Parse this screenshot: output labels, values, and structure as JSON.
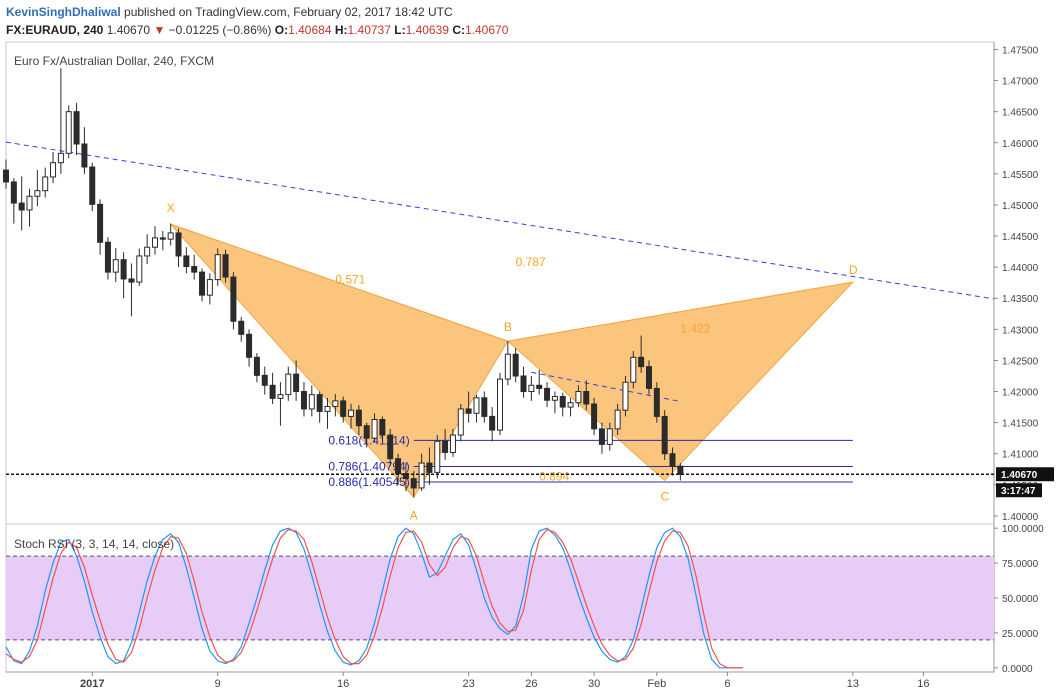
{
  "header": {
    "author": "KevinSinghDhaliwal",
    "published_text": "published on TradingView.com, February 02, 2017 18:42 UTC",
    "symbol": "FX:EURAUD, 240",
    "last": "1.40670",
    "change_arrow": "▼",
    "change": "−0.01225 (−0.86%)",
    "o_label": "O:",
    "o_value": "1.40684",
    "h_label": "H:",
    "h_value": "1.40737",
    "l_label": "L:",
    "l_value": "1.40639",
    "c_label": "C:",
    "c_value": "1.40670"
  },
  "colors": {
    "pattern_fill": "#fbbf6f",
    "pattern_text": "#f5a623",
    "trendline": "#3b3fd9",
    "fib_line": "#2a2aa8",
    "stoch_blue": "#2196f3",
    "stoch_red": "#ef5350",
    "stoch_band": "#e6ccf7",
    "candle": "#2b2b2b"
  },
  "chart_data": [
    {
      "type": "candlestick",
      "title": "Euro Fx/Australian Dollar, 240, FXCM",
      "y_ticks": [
        "1.47500",
        "1.47000",
        "1.46500",
        "1.46000",
        "1.45500",
        "1.45000",
        "1.44500",
        "1.44000",
        "1.43500",
        "1.43000",
        "1.42500",
        "1.42000",
        "1.41500",
        "1.41000",
        "1.40500",
        "1.40000"
      ],
      "y_range": [
        1.3987,
        1.4762
      ],
      "x_ticks": [
        "2017",
        "9",
        "16",
        "23",
        "26",
        "30",
        "Feb",
        "6",
        "13",
        "16"
      ],
      "x_tick_index": [
        11,
        27,
        43,
        59,
        67,
        75,
        83,
        92,
        108,
        117
      ],
      "index_range": [
        0,
        126
      ],
      "last_price_label": "1.40670",
      "countdown_label": "3:17:47",
      "current_price": 1.4067,
      "pattern": {
        "name": "harmonic",
        "points": [
          {
            "label": "X",
            "index": 21,
            "price": 1.4469
          },
          {
            "label": "A",
            "index": 52,
            "price": 1.403
          },
          {
            "label": "B",
            "index": 64,
            "price": 1.4281
          },
          {
            "label": "C",
            "index": 84,
            "price": 1.4057
          },
          {
            "label": "D",
            "index": 108,
            "price": 1.4376
          }
        ],
        "ratios": [
          {
            "text": "0.571",
            "index": 42,
            "price": 1.438
          },
          {
            "text": "0.787",
            "index": 65,
            "price": 1.4408
          },
          {
            "text": "1.422",
            "index": 86,
            "price": 1.4301
          },
          {
            "text": "0.894",
            "index": 68,
            "price": 1.4063
          }
        ]
      },
      "fib_levels": [
        {
          "text": "0.618(1.41214)",
          "price": 1.41214
        },
        {
          "text": "0.786(1.40794)",
          "price": 1.40794
        },
        {
          "text": "0.886(1.40545)",
          "price": 1.40545
        }
      ],
      "trendlines": [
        {
          "from": {
            "index": 0,
            "price": 1.4601
          },
          "to": {
            "index": 126,
            "price": 1.4349
          }
        },
        {
          "from": {
            "index": 67,
            "price": 1.4231
          },
          "to": {
            "index": 86,
            "price": 1.4184
          }
        }
      ],
      "candles": [
        [
          1.4556,
          1.4573,
          1.4526,
          1.4537
        ],
        [
          1.4537,
          1.4543,
          1.447,
          1.4503
        ],
        [
          1.4503,
          1.4546,
          1.4459,
          1.4492
        ],
        [
          1.4492,
          1.4526,
          1.4465,
          1.4514
        ],
        [
          1.4514,
          1.4556,
          1.4498,
          1.4523
        ],
        [
          1.4523,
          1.456,
          1.4512,
          1.4545
        ],
        [
          1.4545,
          1.4585,
          1.4535,
          1.4568
        ],
        [
          1.4568,
          1.472,
          1.455,
          1.4583
        ],
        [
          1.4583,
          1.466,
          1.4575,
          1.465
        ],
        [
          1.465,
          1.4664,
          1.458,
          1.4598
        ],
        [
          1.4598,
          1.4625,
          1.455,
          1.4561
        ],
        [
          1.4561,
          1.4568,
          1.449,
          1.4501
        ],
        [
          1.4501,
          1.4509,
          1.442,
          1.444
        ],
        [
          1.444,
          1.4448,
          1.438,
          1.4392
        ],
        [
          1.4392,
          1.4431,
          1.4376,
          1.4412
        ],
        [
          1.4412,
          1.4424,
          1.435,
          1.4381
        ],
        [
          1.4381,
          1.4406,
          1.4321,
          1.4376
        ],
        [
          1.4376,
          1.443,
          1.437,
          1.4418
        ],
        [
          1.4418,
          1.4453,
          1.4405,
          1.4432
        ],
        [
          1.4432,
          1.4466,
          1.442,
          1.4447
        ],
        [
          1.4447,
          1.4458,
          1.4427,
          1.4445
        ],
        [
          1.4445,
          1.447,
          1.4435,
          1.4455
        ],
        [
          1.4455,
          1.4462,
          1.44,
          1.4418
        ],
        [
          1.4418,
          1.4432,
          1.439,
          1.4401
        ],
        [
          1.4401,
          1.442,
          1.438,
          1.4392
        ],
        [
          1.4392,
          1.4398,
          1.4345,
          1.4355
        ],
        [
          1.4355,
          1.439,
          1.434,
          1.438
        ],
        [
          1.438,
          1.443,
          1.437,
          1.442
        ],
        [
          1.442,
          1.4428,
          1.4375,
          1.4384
        ],
        [
          1.4384,
          1.4392,
          1.43,
          1.4313
        ],
        [
          1.4313,
          1.432,
          1.428,
          1.4292
        ],
        [
          1.4292,
          1.43,
          1.424,
          1.4255
        ],
        [
          1.4255,
          1.4262,
          1.4215,
          1.4226
        ],
        [
          1.4226,
          1.424,
          1.4195,
          1.421
        ],
        [
          1.421,
          1.423,
          1.418,
          1.4189
        ],
        [
          1.4189,
          1.4215,
          1.4145,
          1.4195
        ],
        [
          1.4195,
          1.424,
          1.4185,
          1.4228
        ],
        [
          1.4228,
          1.425,
          1.4185,
          1.42
        ],
        [
          1.42,
          1.4215,
          1.416,
          1.4172
        ],
        [
          1.4172,
          1.421,
          1.416,
          1.4195
        ],
        [
          1.4195,
          1.42,
          1.415,
          1.4168
        ],
        [
          1.4168,
          1.419,
          1.414,
          1.4176
        ],
        [
          1.4176,
          1.4196,
          1.416,
          1.4185
        ],
        [
          1.4185,
          1.4192,
          1.415,
          1.416
        ],
        [
          1.416,
          1.418,
          1.414,
          1.417
        ],
        [
          1.417,
          1.4178,
          1.413,
          1.4145
        ],
        [
          1.4145,
          1.415,
          1.411,
          1.4125
        ],
        [
          1.4125,
          1.4165,
          1.4118,
          1.4155
        ],
        [
          1.4155,
          1.416,
          1.412,
          1.413
        ],
        [
          1.413,
          1.414,
          1.408,
          1.4092
        ],
        [
          1.4092,
          1.41,
          1.405,
          1.4068
        ],
        [
          1.4068,
          1.4085,
          1.404,
          1.406
        ],
        [
          1.406,
          1.4072,
          1.403,
          1.4045
        ],
        [
          1.4045,
          1.41,
          1.404,
          1.4085
        ],
        [
          1.4085,
          1.411,
          1.405,
          1.407
        ],
        [
          1.407,
          1.413,
          1.406,
          1.412
        ],
        [
          1.412,
          1.414,
          1.409,
          1.4102
        ],
        [
          1.4102,
          1.414,
          1.4095,
          1.413
        ],
        [
          1.413,
          1.418,
          1.412,
          1.4172
        ],
        [
          1.4172,
          1.42,
          1.415,
          1.4165
        ],
        [
          1.4165,
          1.4195,
          1.415,
          1.419
        ],
        [
          1.419,
          1.42,
          1.415,
          1.416
        ],
        [
          1.416,
          1.4175,
          1.412,
          1.4138
        ],
        [
          1.4138,
          1.423,
          1.413,
          1.422
        ],
        [
          1.422,
          1.4281,
          1.421,
          1.426
        ],
        [
          1.426,
          1.427,
          1.4215,
          1.4225
        ],
        [
          1.4225,
          1.424,
          1.419,
          1.42
        ],
        [
          1.42,
          1.4225,
          1.4185,
          1.421
        ],
        [
          1.421,
          1.4235,
          1.4195,
          1.4205
        ],
        [
          1.4205,
          1.4215,
          1.4175,
          1.4186
        ],
        [
          1.4186,
          1.42,
          1.4165,
          1.4192
        ],
        [
          1.4192,
          1.4198,
          1.416,
          1.4175
        ],
        [
          1.4175,
          1.419,
          1.416,
          1.4182
        ],
        [
          1.4182,
          1.421,
          1.4175,
          1.42
        ],
        [
          1.42,
          1.4218,
          1.417,
          1.418
        ],
        [
          1.418,
          1.419,
          1.413,
          1.414
        ],
        [
          1.414,
          1.415,
          1.41,
          1.4115
        ],
        [
          1.4115,
          1.415,
          1.4105,
          1.414
        ],
        [
          1.414,
          1.418,
          1.413,
          1.417
        ],
        [
          1.417,
          1.4225,
          1.416,
          1.4215
        ],
        [
          1.4215,
          1.4265,
          1.4205,
          1.4255
        ],
        [
          1.4255,
          1.429,
          1.423,
          1.424
        ],
        [
          1.424,
          1.425,
          1.4195,
          1.4205
        ],
        [
          1.4205,
          1.4215,
          1.415,
          1.416
        ],
        [
          1.416,
          1.417,
          1.409,
          1.41
        ],
        [
          1.41,
          1.411,
          1.4065,
          1.408
        ],
        [
          1.408,
          1.4085,
          1.4057,
          1.4067
        ]
      ]
    },
    {
      "type": "line",
      "title": "Stoch RSI (3, 3, 14, 14, close)",
      "y_ticks": [
        "100.0000",
        "75.0000",
        "50.0000",
        "25.0000",
        "0.0000"
      ],
      "y_range": [
        -3,
        103
      ],
      "band": [
        20,
        80
      ],
      "series": [
        {
          "values": [
            15,
            5,
            3,
            12,
            30,
            55,
            75,
            90,
            92,
            80,
            62,
            40,
            22,
            8,
            3,
            5,
            18,
            40,
            62,
            80,
            92,
            96,
            90,
            72,
            50,
            28,
            12,
            5,
            3,
            6,
            15,
            32,
            50,
            70,
            88,
            98,
            100,
            97,
            85,
            66,
            45,
            26,
            12,
            4,
            2,
            5,
            14,
            32,
            55,
            78,
            94,
            100,
            96,
            82,
            65,
            68,
            80,
            92,
            96,
            88,
            70,
            50,
            36,
            28,
            24,
            30,
            52,
            85,
            98,
            100,
            95,
            86,
            70,
            52,
            36,
            22,
            12,
            6,
            4,
            8,
            20,
            42,
            66,
            86,
            97,
            100,
            94,
            78,
            52,
            24,
            6,
            0,
            0,
            0,
            0
          ]
        },
        {
          "values": [
            10,
            6,
            4,
            8,
            20,
            42,
            64,
            82,
            90,
            86,
            72,
            52,
            34,
            17,
            6,
            4,
            11,
            28,
            50,
            70,
            86,
            94,
            93,
            82,
            62,
            40,
            22,
            9,
            4,
            5,
            11,
            24,
            41,
            60,
            78,
            93,
            99,
            98,
            92,
            76,
            56,
            36,
            20,
            8,
            3,
            3,
            9,
            23,
            43,
            66,
            86,
            97,
            98,
            90,
            74,
            66,
            72,
            86,
            94,
            92,
            80,
            61,
            44,
            32,
            26,
            27,
            41,
            70,
            92,
            99,
            97,
            90,
            78,
            62,
            45,
            30,
            17,
            9,
            5,
            6,
            14,
            31,
            54,
            76,
            91,
            98,
            97,
            87,
            66,
            38,
            14,
            3,
            0,
            0,
            0
          ]
        }
      ]
    }
  ]
}
